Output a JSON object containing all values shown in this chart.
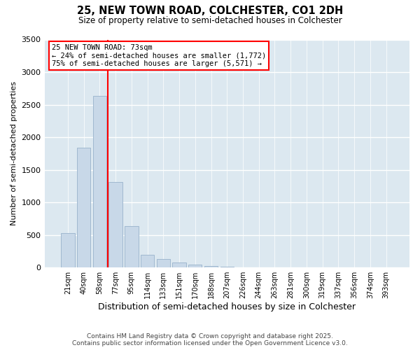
{
  "title_line1": "25, NEW TOWN ROAD, COLCHESTER, CO1 2DH",
  "title_line2": "Size of property relative to semi-detached houses in Colchester",
  "xlabel": "Distribution of semi-detached houses by size in Colchester",
  "ylabel": "Number of semi-detached properties",
  "categories": [
    "21sqm",
    "40sqm",
    "58sqm",
    "77sqm",
    "95sqm",
    "114sqm",
    "133sqm",
    "151sqm",
    "170sqm",
    "188sqm",
    "207sqm",
    "226sqm",
    "244sqm",
    "263sqm",
    "281sqm",
    "300sqm",
    "319sqm",
    "337sqm",
    "356sqm",
    "374sqm",
    "393sqm"
  ],
  "values": [
    530,
    1840,
    2640,
    1310,
    640,
    200,
    130,
    80,
    50,
    25,
    12,
    6,
    4,
    3,
    2,
    1,
    1,
    0,
    0,
    0,
    0
  ],
  "bar_color": "#c8d8e8",
  "bar_edge_color": "#a0b8d0",
  "property_label": "25 NEW TOWN ROAD: 73sqm",
  "pct_smaller": 24,
  "count_smaller": 1772,
  "pct_larger": 75,
  "count_larger": 5571,
  "vline_color": "red",
  "vline_x": 2.5,
  "ylim": [
    0,
    3500
  ],
  "yticks": [
    0,
    500,
    1000,
    1500,
    2000,
    2500,
    3000,
    3500
  ],
  "footer_line1": "Contains HM Land Registry data © Crown copyright and database right 2025.",
  "footer_line2": "Contains public sector information licensed under the Open Government Licence v3.0.",
  "background_color": "#dce8f0"
}
